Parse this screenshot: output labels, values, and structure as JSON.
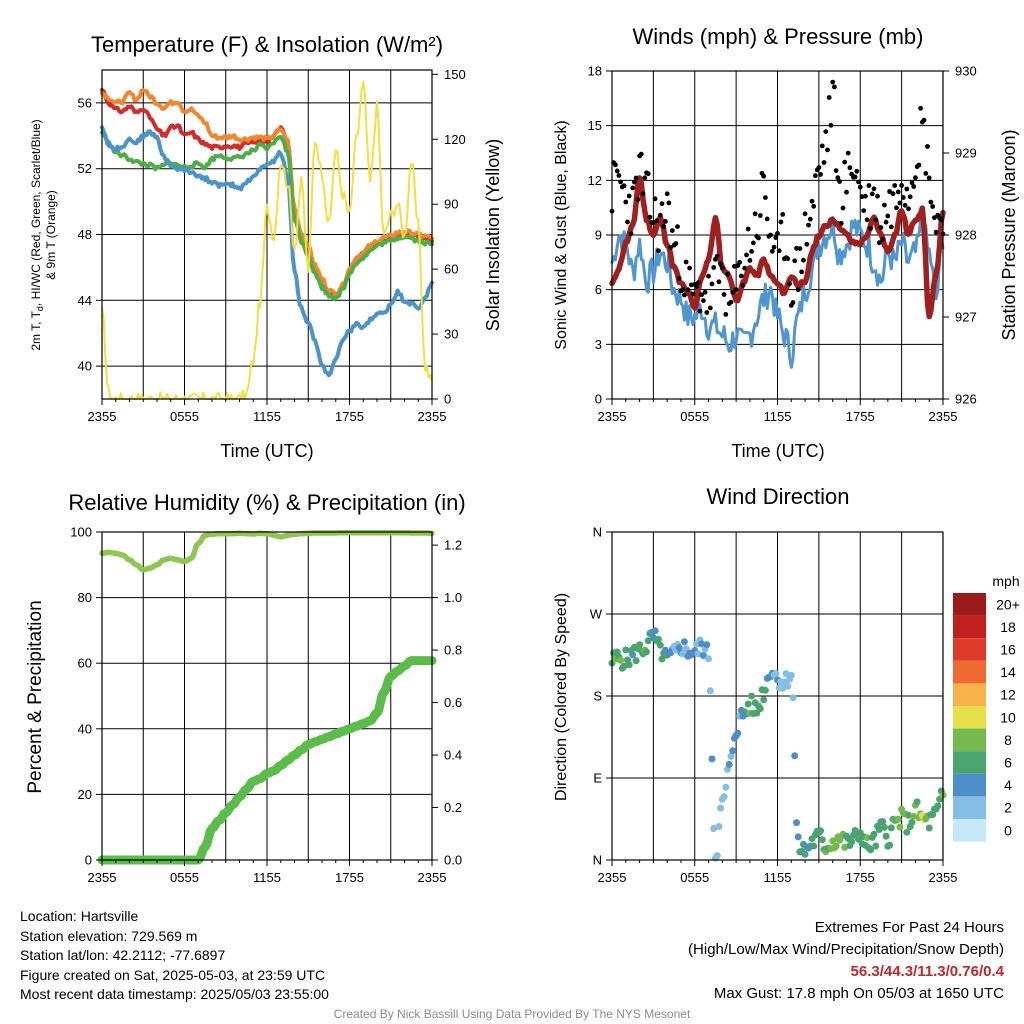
{
  "panels": {
    "temperature": {
      "title": "Temperature (F) & Insolation (W/m²)",
      "ylabel_left_line1": "2m T, T",
      "ylabel_left_sub": "d",
      "ylabel_left_line1b": ", HI/WC (Red, Green, Scarlet/Blue)",
      "ylabel_left_line2": "& 9m T (Orange)",
      "ylabel_right": "Solar Insolation (Yellow)",
      "xlabel": "Time (UTC)"
    },
    "winds": {
      "title": "Winds (mph) & Pressure (mb)",
      "ylabel_left": "Sonic Wind & Gust (Blue, Black)",
      "ylabel_right": "Station Pressure (Maroon)",
      "xlabel": "Time (UTC)"
    },
    "humidity": {
      "title": "Relative Humidity (%) & Precipitation (in)",
      "ylabel_left": "Percent & Precipitation"
    },
    "direction": {
      "title": "Wind Direction",
      "ylabel_left": "Direction (Colored By Speed)",
      "legend_title": "mph",
      "legend_labels": [
        "20+",
        "18",
        "16",
        "14",
        "12",
        "10",
        "8",
        "6",
        "4",
        "2",
        "0"
      ]
    }
  },
  "info": {
    "location": "Location: Hartsville",
    "elevation": "Station elevation: 729.569 m",
    "latlon": "Station lat/lon: 42.2112; -77.6897",
    "created": "Figure created on Sat, 2025-05-03, at 23:59 UTC",
    "recent": "Most recent data timestamp: 2025/05/03 23:55:00"
  },
  "extremes": {
    "title": "Extremes For Past 24 Hours",
    "subtitle": "(High/Low/Max Wind/Precipitation/Snow Depth)",
    "values": "56.3/44.3/11.3/0.76/0.4",
    "gust": "Max Gust: 17.8 mph On 05/03 at 1650 UTC"
  },
  "footer": "Created By Nick Bassill Using Data Provided By The NYS Mesonet",
  "colors": {
    "temp_red": "#d42a2a",
    "temp_orange": "#f2862d",
    "temp_green": "#4eae45",
    "temp_blue": "#4b94cb",
    "insolation": "#f5de3f",
    "wind_blue": "#4f95d0",
    "gust_black": "#000000",
    "pressure_maroon": "#a01f1f",
    "rh_green": "#8fc651",
    "precip_green": "#5bbd49"
  },
  "chart_data": [
    {
      "type": "line",
      "title": "Temperature (F) & Insolation (W/m²)",
      "xlabel": "Time (UTC)",
      "x_ticks": [
        "2355",
        "0555",
        "1155",
        "1755",
        "2355"
      ],
      "xlim_hours": [
        0,
        24
      ],
      "ylim": [
        38,
        58
      ],
      "y_ticks": [
        40,
        44,
        48,
        52,
        56
      ],
      "y2lim": [
        0,
        152
      ],
      "y2_ticks": [
        0,
        30,
        60,
        90,
        120,
        150
      ],
      "x_hours": [
        0,
        0.5,
        1,
        1.5,
        2,
        2.5,
        3,
        3.5,
        4,
        4.5,
        5,
        5.5,
        6,
        6.5,
        7,
        7.5,
        8,
        8.5,
        9,
        9.5,
        10,
        10.5,
        11,
        11.5,
        12,
        12.5,
        13,
        13.5,
        14,
        14.5,
        15,
        15.5,
        16,
        16.5,
        17,
        17.5,
        18,
        18.5,
        19,
        19.5,
        20,
        20.5,
        21,
        21.5,
        22,
        22.5,
        23,
        23.5,
        24
      ],
      "series": [
        {
          "name": "2m T",
          "axis": "left",
          "color": "#d42a2a",
          "values": [
            56.8,
            56.0,
            55.6,
            55.5,
            55.8,
            55.4,
            55.7,
            55.1,
            54.4,
            54.0,
            54.5,
            54.6,
            54.0,
            54.2,
            53.8,
            53.5,
            53.3,
            53.3,
            53.4,
            53.4,
            53.3,
            53.5,
            53.6,
            53.7,
            53.7,
            54.0,
            54.5,
            53.6,
            49.5,
            48.0,
            47.2,
            46.0,
            45.2,
            44.5,
            44.3,
            44.8,
            45.8,
            46.5,
            46.8,
            47.2,
            47.5,
            47.7,
            47.8,
            48.0,
            48.1,
            48.0,
            47.9,
            47.8,
            47.7
          ]
        },
        {
          "name": "9m T",
          "axis": "left",
          "color": "#f2862d",
          "values": [
            56.6,
            56.3,
            56.0,
            56.1,
            56.6,
            56.2,
            56.8,
            56.4,
            56.0,
            55.7,
            56.0,
            56.1,
            55.5,
            55.6,
            55.2,
            54.8,
            54.0,
            53.9,
            53.9,
            54.0,
            53.8,
            53.8,
            53.9,
            53.9,
            53.8,
            54.0,
            54.4,
            53.7,
            49.6,
            48.1,
            47.3,
            46.1,
            45.3,
            44.6,
            44.4,
            44.9,
            45.9,
            46.6,
            46.9,
            47.3,
            47.6,
            47.8,
            47.9,
            48.1,
            48.2,
            48.1,
            48.0,
            47.9,
            47.8
          ]
        },
        {
          "name": "Td / HI",
          "axis": "left",
          "color": "#4eae45",
          "values": [
            54.2,
            53.5,
            53.0,
            52.8,
            52.6,
            52.4,
            52.3,
            52.2,
            52.0,
            52.2,
            52.4,
            52.2,
            52.1,
            52.2,
            52.3,
            52.1,
            52.6,
            52.8,
            52.7,
            52.6,
            52.7,
            52.9,
            53.1,
            53.4,
            53.2,
            53.6,
            54.0,
            53.0,
            49.0,
            47.6,
            46.8,
            45.6,
            44.8,
            44.3,
            44.2,
            44.6,
            45.6,
            46.3,
            46.6,
            47.0,
            47.3,
            47.5,
            47.6,
            47.8,
            47.9,
            47.8,
            47.6,
            47.5,
            47.4
          ]
        },
        {
          "name": "WC",
          "axis": "left",
          "color": "#4b94cb",
          "values": [
            54.5,
            53.5,
            53.2,
            53.4,
            53.8,
            53.6,
            54.0,
            54.2,
            53.9,
            52.7,
            52.2,
            52.0,
            51.9,
            51.8,
            51.6,
            51.4,
            51.2,
            51.0,
            51.0,
            51.0,
            50.8,
            51.2,
            51.5,
            52.0,
            52.2,
            52.5,
            53.0,
            51.5,
            45.8,
            43.5,
            42.6,
            41.5,
            40.0,
            39.5,
            40.4,
            41.5,
            42.1,
            42.6,
            42.3,
            42.8,
            43.2,
            43.2,
            43.8,
            44.5,
            44.0,
            43.8,
            43.5,
            44.2,
            45.0
          ]
        },
        {
          "name": "Insolation",
          "axis": "right",
          "color": "#f5de3f",
          "values": [
            40,
            2,
            0,
            0,
            0,
            0,
            0,
            0,
            0,
            0,
            0,
            0,
            0,
            0,
            0,
            0,
            0,
            0,
            0,
            0,
            0,
            2,
            18,
            45,
            88,
            75,
            110,
            100,
            70,
            100,
            60,
            120,
            105,
            80,
            115,
            95,
            85,
            120,
            145,
            100,
            135,
            75,
            85,
            90,
            75,
            110,
            80,
            15,
            8
          ]
        }
      ]
    },
    {
      "type": "line",
      "title": "Winds (mph) & Pressure (mb)",
      "xlabel": "Time (UTC)",
      "x_ticks": [
        "2355",
        "0555",
        "1155",
        "1755",
        "2355"
      ],
      "ylim": [
        0,
        18
      ],
      "y_ticks": [
        0,
        3,
        6,
        9,
        12,
        15,
        18
      ],
      "y2lim": [
        926,
        930
      ],
      "y2_ticks": [
        926,
        927,
        928,
        929,
        930
      ],
      "x_hours": [
        0,
        0.5,
        1,
        1.5,
        2,
        2.5,
        3,
        3.5,
        4,
        4.5,
        5,
        5.5,
        6,
        6.5,
        7,
        7.5,
        8,
        8.5,
        9,
        9.5,
        10,
        10.5,
        11,
        11.5,
        12,
        12.5,
        13,
        13.5,
        14,
        14.5,
        15,
        15.5,
        16,
        16.5,
        17,
        17.5,
        18,
        18.5,
        19,
        19.5,
        20,
        20.5,
        21,
        21.5,
        22,
        22.5,
        23,
        23.5,
        24
      ],
      "series": [
        {
          "name": "Sonic Wind",
          "axis": "left",
          "color": "#4f95d0",
          "values": [
            7.5,
            9.0,
            8.5,
            7.0,
            8.5,
            6.5,
            7.0,
            8.0,
            7.5,
            6.0,
            5.5,
            4.5,
            4.5,
            5.0,
            4.0,
            4.0,
            3.5,
            3.0,
            3.5,
            3.0,
            3.5,
            4.5,
            5.5,
            6.0,
            4.5,
            3.5,
            2.5,
            4.5,
            6.0,
            7.0,
            8.5,
            9.0,
            9.5,
            8.0,
            8.5,
            9.5,
            9.0,
            8.5,
            7.5,
            6.5,
            8.0,
            7.5,
            8.5,
            7.5,
            8.0,
            9.5,
            8.0,
            5.5,
            9.0
          ]
        },
        {
          "name": "Gust",
          "axis": "left",
          "color": "#000000",
          "marker": "dot",
          "values": [
            11.5,
            12.0,
            11.0,
            10.5,
            12.5,
            11.0,
            10.0,
            9.5,
            10.5,
            8.5,
            7.5,
            6.0,
            5.5,
            6.0,
            5.5,
            6.5,
            7.0,
            5.0,
            6.0,
            7.5,
            8.5,
            9.5,
            11.5,
            9.0,
            7.5,
            9.0,
            6.5,
            7.0,
            9.0,
            10.5,
            12.5,
            14.0,
            16.5,
            11.0,
            12.0,
            13.0,
            11.5,
            10.5,
            11.0,
            9.5,
            10.5,
            11.0,
            12.5,
            11.5,
            13.5,
            15.0,
            12.5,
            9.5,
            10.5
          ]
        },
        {
          "name": "Station Pressure",
          "axis": "right",
          "color": "#a01f1f",
          "values": [
            927.4,
            927.6,
            927.9,
            928.1,
            928.7,
            928.2,
            928.0,
            928.2,
            927.9,
            927.6,
            927.4,
            927.3,
            927.1,
            927.5,
            927.7,
            928.2,
            927.6,
            927.5,
            927.2,
            927.4,
            927.6,
            927.5,
            927.7,
            927.5,
            927.4,
            927.3,
            927.5,
            927.4,
            927.4,
            927.8,
            928.0,
            928.1,
            928.2,
            928.1,
            928.0,
            927.9,
            927.9,
            928.0,
            928.2,
            928.0,
            927.8,
            928.0,
            928.3,
            928.0,
            928.2,
            928.3,
            927.0,
            927.5,
            928.3
          ]
        }
      ]
    },
    {
      "type": "line",
      "title": "Relative Humidity (%) & Precipitation (in)",
      "x_ticks": [
        "2355",
        "0555",
        "1155",
        "1755",
        "2355"
      ],
      "ylim": [
        0,
        100
      ],
      "y_ticks": [
        0,
        20,
        40,
        60,
        80,
        100
      ],
      "y2lim": [
        0,
        1.25
      ],
      "y2_ticks": [
        0.0,
        0.2,
        0.4,
        0.6,
        0.8,
        1.0,
        1.2
      ],
      "x_hours": [
        0,
        0.5,
        1,
        1.5,
        2,
        2.5,
        3,
        3.5,
        4,
        4.5,
        5,
        5.5,
        6,
        6.5,
        7,
        7.5,
        8,
        8.5,
        9,
        9.5,
        10,
        10.5,
        11,
        11.5,
        12,
        12.5,
        13,
        13.5,
        14,
        14.5,
        15,
        15.5,
        16,
        16.5,
        17,
        17.5,
        18,
        18.5,
        19,
        19.5,
        20,
        20.5,
        21,
        21.5,
        22,
        22.5,
        23,
        23.5,
        24
      ],
      "series": [
        {
          "name": "RH",
          "axis": "left",
          "color": "#8fc651",
          "values": [
            93.5,
            93.8,
            93.5,
            93.0,
            91.5,
            90.0,
            88.5,
            89.0,
            90.0,
            91.5,
            92.0,
            91.5,
            91.0,
            92.0,
            96.5,
            99.0,
            99.3,
            99.5,
            99.5,
            99.5,
            99.6,
            99.5,
            99.4,
            99.6,
            99.5,
            99.0,
            98.5,
            99.0,
            99.3,
            99.5,
            99.6,
            99.7,
            99.7,
            99.7,
            99.7,
            99.8,
            99.8,
            99.8,
            99.8,
            99.8,
            99.8,
            99.8,
            99.8,
            99.8,
            99.8,
            99.7,
            99.7,
            99.7,
            99.6
          ]
        },
        {
          "name": "Precipitation",
          "axis": "right",
          "color": "#5bbd49",
          "values": [
            0.0,
            0.0,
            0.0,
            0.0,
            0.0,
            0.0,
            0.0,
            0.0,
            0.0,
            0.0,
            0.0,
            0.0,
            0.0,
            0.0,
            0.0,
            0.05,
            0.12,
            0.15,
            0.18,
            0.21,
            0.24,
            0.27,
            0.3,
            0.31,
            0.33,
            0.34,
            0.36,
            0.38,
            0.4,
            0.42,
            0.44,
            0.45,
            0.46,
            0.47,
            0.48,
            0.49,
            0.5,
            0.51,
            0.52,
            0.53,
            0.56,
            0.64,
            0.7,
            0.72,
            0.74,
            0.76,
            0.76,
            0.76,
            0.76
          ]
        }
      ]
    },
    {
      "type": "scatter",
      "title": "Wind Direction",
      "x_ticks": [
        "2355",
        "0555",
        "1155",
        "1755",
        "2355"
      ],
      "y_ticks": [
        "N",
        "E",
        "S",
        "W",
        "N"
      ],
      "ylim_deg": [
        0,
        360
      ],
      "colorbar": {
        "label": "mph",
        "levels": [
          0,
          2,
          4,
          6,
          8,
          10,
          12,
          14,
          16,
          18,
          20
        ],
        "colors": [
          "#c6e8f8",
          "#84bde6",
          "#4d8dc8",
          "#4aa46f",
          "#74b94e",
          "#e6e04b",
          "#f8b24c",
          "#ef6a32",
          "#dd3b2a",
          "#c2201f",
          "#9b1b1b"
        ]
      },
      "x_hours": [
        0,
        0.5,
        1,
        1.5,
        2,
        2.5,
        3,
        3.5,
        4,
        4.5,
        5,
        5.5,
        6,
        6.5,
        7,
        7.5,
        8,
        8.5,
        9,
        9.5,
        10,
        10.5,
        11,
        11.5,
        12,
        12.5,
        13,
        13.5,
        14,
        14.5,
        15,
        15.5,
        16,
        16.5,
        17,
        17.5,
        18,
        18.5,
        19,
        19.5,
        20,
        20.5,
        21,
        21.5,
        22,
        22.5,
        23,
        23.5,
        24
      ],
      "direction_deg": [
        218,
        222,
        220,
        225,
        230,
        235,
        245,
        230,
        220,
        225,
        235,
        230,
        228,
        235,
        225,
        5,
        60,
        100,
        145,
        160,
        170,
        165,
        185,
        210,
        200,
        195,
        205,
        15,
        10,
        20,
        25,
        15,
        20,
        25,
        18,
        22,
        30,
        15,
        20,
        35,
        25,
        40,
        45,
        40,
        55,
        45,
        42,
        50,
        70
      ],
      "speed_mph": [
        7,
        8,
        7,
        6,
        8,
        7,
        6,
        7,
        6,
        4,
        4,
        5,
        4,
        4,
        4,
        3,
        3,
        4,
        4,
        5,
        8,
        7,
        6,
        5,
        4,
        3,
        3,
        5,
        6,
        7,
        7,
        8,
        9,
        10,
        8,
        7,
        7,
        8,
        7,
        6,
        7,
        8,
        9,
        7,
        8,
        10,
        8,
        6,
        8
      ]
    }
  ]
}
